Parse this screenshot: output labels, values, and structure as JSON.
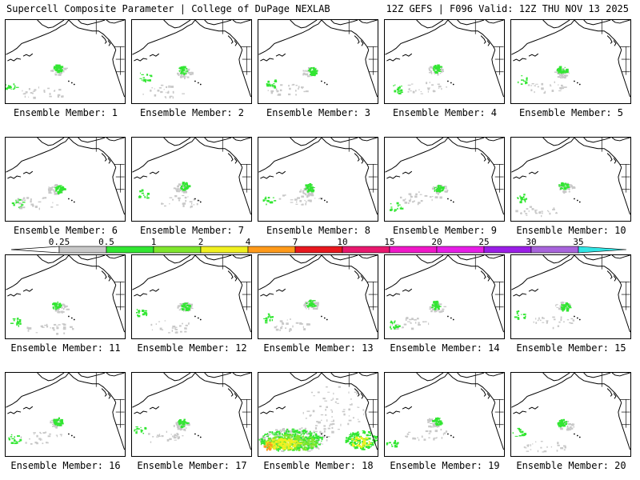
{
  "header": {
    "title_left": "Supercell Composite Parameter | College of DuPage NEXLAB",
    "title_right": "12Z GEFS | F096 Valid: 12Z THU NOV 13 2025"
  },
  "panels": [
    {
      "label": "Ensemble Member: 1",
      "intensity": "low"
    },
    {
      "label": "Ensemble Member: 2",
      "intensity": "low"
    },
    {
      "label": "Ensemble Member: 3",
      "intensity": "low"
    },
    {
      "label": "Ensemble Member: 4",
      "intensity": "low"
    },
    {
      "label": "Ensemble Member: 5",
      "intensity": "low"
    },
    {
      "label": "Ensemble Member: 6",
      "intensity": "low"
    },
    {
      "label": "Ensemble Member: 7",
      "intensity": "low"
    },
    {
      "label": "Ensemble Member: 8",
      "intensity": "low"
    },
    {
      "label": "Ensemble Member: 9",
      "intensity": "low"
    },
    {
      "label": "Ensemble Member: 10",
      "intensity": "low"
    },
    {
      "label": "Ensemble Member: 11",
      "intensity": "low"
    },
    {
      "label": "Ensemble Member: 12",
      "intensity": "low"
    },
    {
      "label": "Ensemble Member: 13",
      "intensity": "low"
    },
    {
      "label": "Ensemble Member: 14",
      "intensity": "low"
    },
    {
      "label": "Ensemble Member: 15",
      "intensity": "low"
    },
    {
      "label": "Ensemble Member: 16",
      "intensity": "low"
    },
    {
      "label": "Ensemble Member: 17",
      "intensity": "low"
    },
    {
      "label": "Ensemble Member: 18",
      "intensity": "high"
    },
    {
      "label": "Ensemble Member: 19",
      "intensity": "low"
    },
    {
      "label": "Ensemble Member: 20",
      "intensity": "low"
    }
  ],
  "colorbar": {
    "ticks": [
      "0.25",
      "0.5",
      "1",
      "2",
      "4",
      "7",
      "10",
      "15",
      "20",
      "25",
      "30",
      "35"
    ],
    "colors": [
      "#c8c8c8",
      "#32e632",
      "#7fe62d",
      "#f0f020",
      "#ff9a1a",
      "#e8181e",
      "#e8186e",
      "#f018c8",
      "#e61ee6",
      "#9a1ee6",
      "#a864dc",
      "#32e6e6"
    ]
  }
}
